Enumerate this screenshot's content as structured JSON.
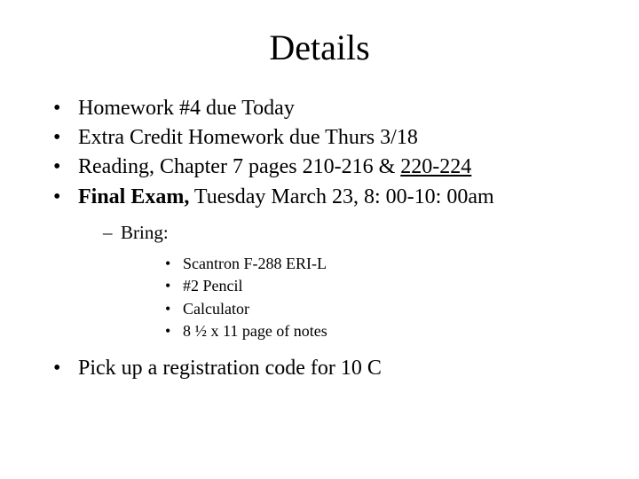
{
  "title": "Details",
  "items": {
    "hw4": "Homework #4 due Today",
    "extra_credit": "Extra Credit Homework due Thurs 3/18",
    "reading_prefix": "Reading, Chapter 7 pages 210-216 & ",
    "reading_underlined": "220-224",
    "final_bold": "Final Exam,",
    "final_rest": " Tuesday March 23, 8: 00-10: 00am",
    "bring_label": "Bring:",
    "bring_items": {
      "scantron": " Scantron F-288 ERI-L",
      "pencil": "#2 Pencil",
      "calculator": "Calculator",
      "notes": "8 ½ x 11 page of notes"
    },
    "registration": "Pick up a registration code for 10 C"
  }
}
